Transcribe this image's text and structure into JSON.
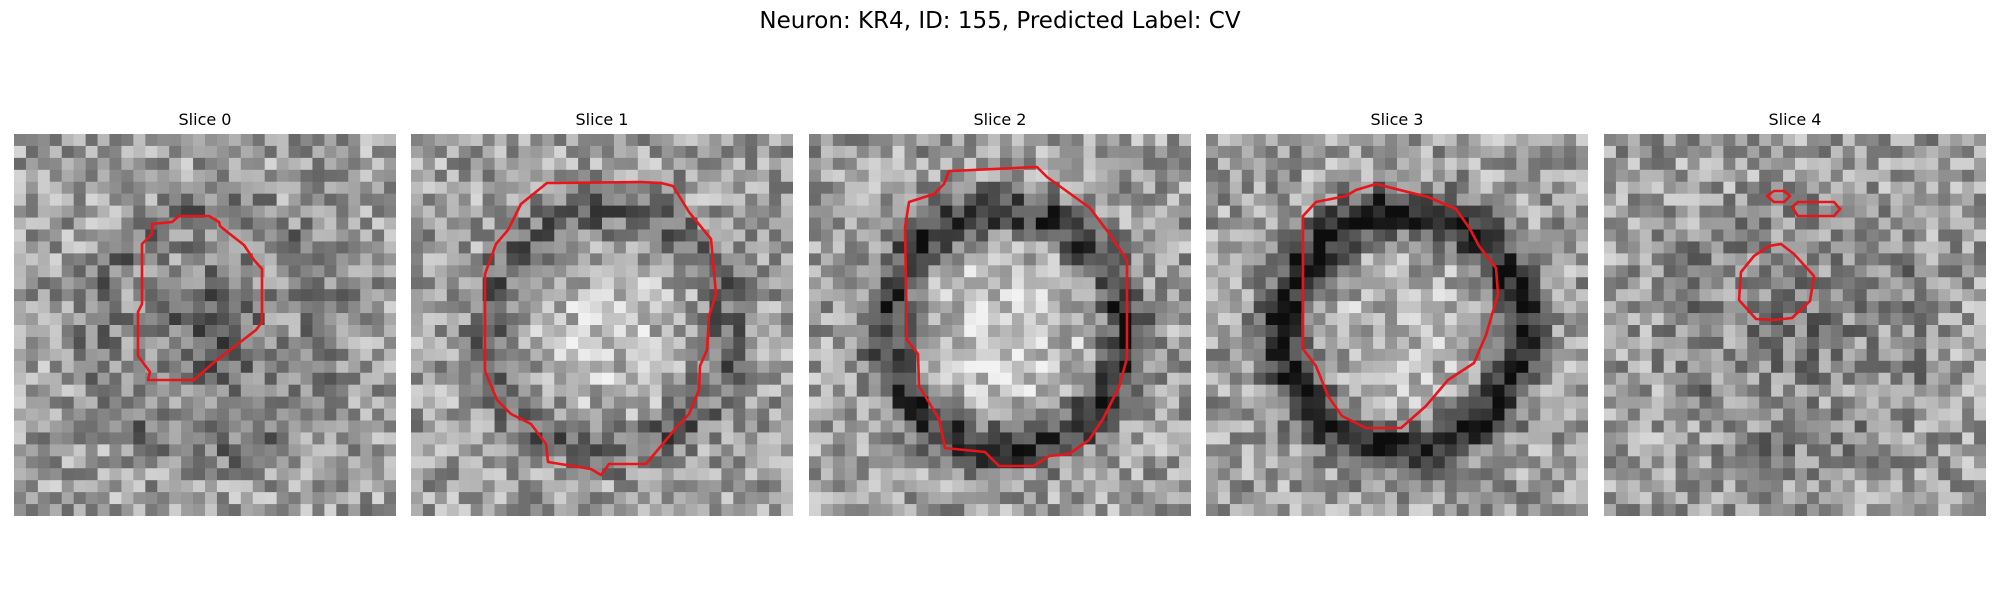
{
  "title": "Neuron: KR4, ID: 155, Predicted Label: CV",
  "contour_color": "#e8151a",
  "panels": [
    {
      "title": "Slice 0",
      "seed": 11,
      "darkRing": 0.15,
      "centerLight": 0.0,
      "blobDark": 0.25
    },
    {
      "title": "Slice 1",
      "seed": 23,
      "darkRing": 0.25,
      "centerLight": 0.15,
      "blobDark": 0.0
    },
    {
      "title": "Slice 2",
      "seed": 37,
      "darkRing": 0.45,
      "centerLight": 0.2,
      "blobDark": 0.0
    },
    {
      "title": "Slice 3",
      "seed": 51,
      "darkRing": 0.55,
      "centerLight": 0.1,
      "blobDark": 0.0
    },
    {
      "title": "Slice 4",
      "seed": 67,
      "darkRing": 0.1,
      "centerLight": 0.0,
      "blobDark": 0.15
    }
  ]
}
